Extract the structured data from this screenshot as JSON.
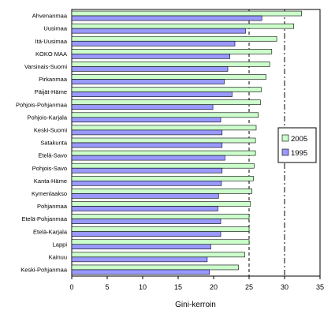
{
  "chart_data": {
    "type": "bar",
    "orientation": "horizontal",
    "xlabel": "Gini-kerroin",
    "xlim": [
      0,
      35
    ],
    "xticks": [
      "0",
      "5",
      "10",
      "15",
      "20",
      "25",
      "30",
      "35"
    ],
    "reference_lines": [
      25,
      30
    ],
    "grid": false,
    "legend_position": "right",
    "categories": [
      "Ahvenanmaa",
      "Uusimaa",
      "Itä-Uusimaa",
      "KOKO MAA",
      "Varsinais-Suomi",
      "Pirkanmaa",
      "Päijät-Häme",
      "Pohjois-Pohjanmaa",
      "Pohjois-Karjala",
      "Keski-Suomi",
      "Satakunta",
      "Etelä-Savo",
      "Pohjois-Savo",
      "Kanta-Häme",
      "Kymenlaakso",
      "Pohjanmaa",
      "Etelä-Pohjanmaa",
      "Etelä-Karjala",
      "Lappi",
      "Kainuu",
      "Keski-Pohjanmaa"
    ],
    "series": [
      {
        "name": "2005",
        "color": "#ccffcc",
        "values": [
          32.4,
          31.3,
          28.9,
          28.2,
          27.9,
          27.4,
          26.7,
          26.6,
          26.3,
          26.0,
          25.9,
          25.9,
          25.7,
          25.6,
          25.4,
          25.2,
          25.0,
          25.0,
          25.0,
          24.4,
          23.5
        ]
      },
      {
        "name": "1995",
        "color": "#9999ff",
        "values": [
          26.8,
          24.5,
          23.0,
          22.3,
          22.0,
          21.5,
          22.6,
          19.9,
          21.0,
          21.2,
          21.2,
          21.6,
          21.2,
          21.1,
          20.7,
          20.6,
          21.0,
          21.0,
          19.6,
          19.1,
          19.4
        ]
      }
    ]
  }
}
